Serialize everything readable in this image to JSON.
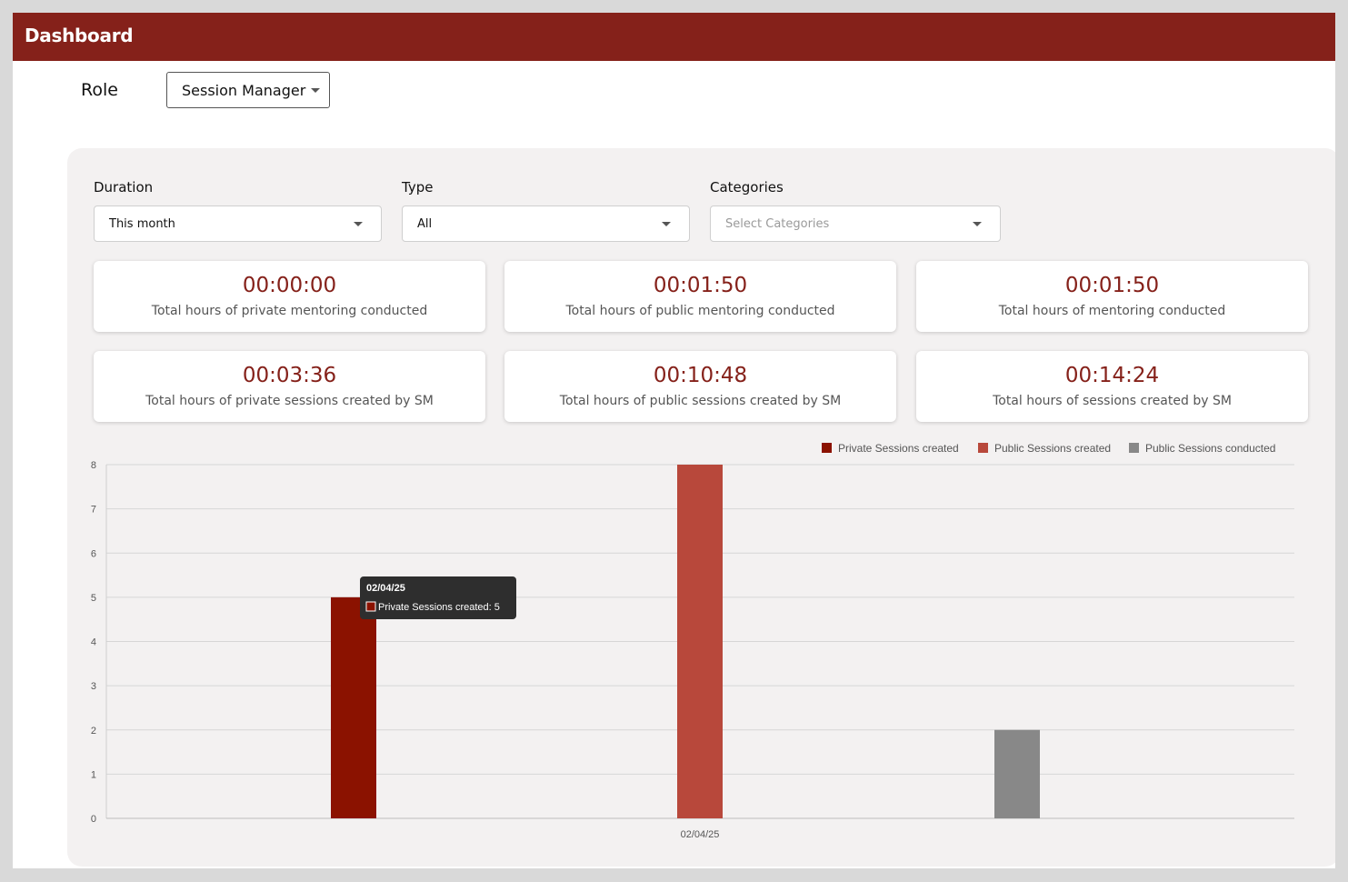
{
  "header": {
    "title": "Dashboard"
  },
  "role": {
    "label": "Role",
    "selected": "Session Manager"
  },
  "filters": [
    {
      "label": "Duration",
      "value": "This month",
      "placeholder": ""
    },
    {
      "label": "Type",
      "value": "All",
      "placeholder": ""
    },
    {
      "label": "Categories",
      "value": "",
      "placeholder": "Select Categories"
    }
  ],
  "cards": [
    {
      "value": "00:00:00",
      "label": "Total hours of private mentoring conducted"
    },
    {
      "value": "00:01:50",
      "label": "Total hours of public mentoring conducted"
    },
    {
      "value": "00:01:50",
      "label": "Total hours of mentoring conducted"
    },
    {
      "value": "00:03:36",
      "label": "Total hours of private sessions created by SM"
    },
    {
      "value": "00:10:48",
      "label": "Total hours of public sessions created by SM"
    },
    {
      "value": "00:14:24",
      "label": "Total hours of sessions created by SM"
    }
  ],
  "colors": {
    "brand": "#85211a",
    "private_created": "#8b1200",
    "public_created": "#b8483b",
    "public_conducted": "#888888"
  },
  "chart_data": {
    "type": "bar",
    "categories": [
      "02/04/25"
    ],
    "series": [
      {
        "name": "Private Sessions created",
        "values": [
          5
        ],
        "color": "#8b1200"
      },
      {
        "name": "Public Sessions created",
        "values": [
          8
        ],
        "color": "#b8483b"
      },
      {
        "name": "Public Sessions conducted",
        "values": [
          2
        ],
        "color": "#888888"
      }
    ],
    "ylim": [
      0,
      8
    ],
    "yticks": [
      0,
      1,
      2,
      3,
      4,
      5,
      6,
      7,
      8
    ],
    "grid": true,
    "legend": "top-right",
    "tooltip": {
      "title": "02/04/25",
      "text": "Private Sessions created: 5"
    }
  }
}
